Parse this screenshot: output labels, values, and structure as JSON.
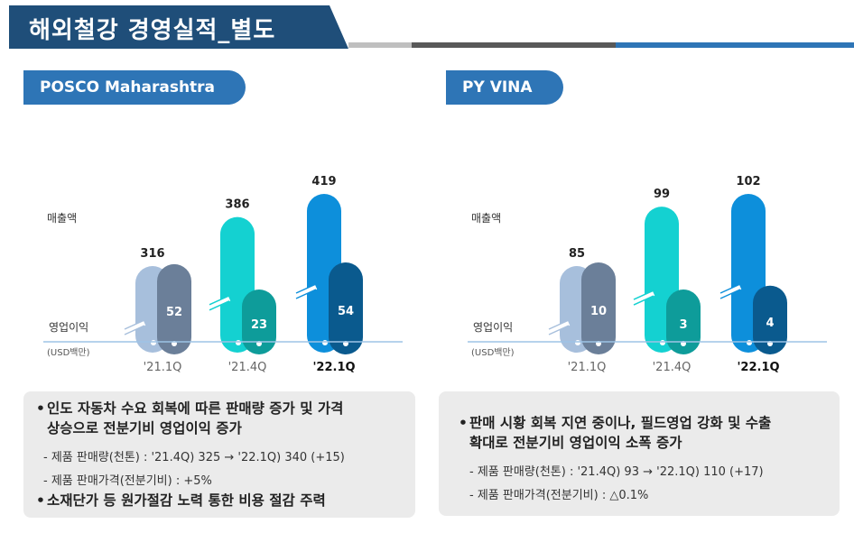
{
  "page_title": "해외철강 경영실적_별도",
  "charts": [
    {
      "name": "POSCO Maharashtra",
      "label_sales": "매출액",
      "label_op": "영업이익",
      "unit": "(USD백만)",
      "periods": [
        {
          "label": "'21.1Q",
          "sales": 316,
          "op": 52,
          "bold": false
        },
        {
          "label": "'21.4Q",
          "sales": 386,
          "op": 23,
          "bold": false
        },
        {
          "label": "'22.1Q",
          "sales": 419,
          "op": 54,
          "bold": true
        }
      ]
    },
    {
      "name": "PY VINA",
      "label_sales": "매출액",
      "label_op": "영업이익",
      "unit": "(USD백만)",
      "periods": [
        {
          "label": "'21.1Q",
          "sales": 85,
          "op": 10,
          "bold": false
        },
        {
          "label": "'21.4Q",
          "sales": 99,
          "op": 3,
          "bold": false
        },
        {
          "label": "'22.1Q",
          "sales": 102,
          "op": 4,
          "bold": true
        }
      ]
    }
  ],
  "notes": [
    {
      "bullets": [
        "인도 자동차 수요 회복에 따른 판매량 증가 및 가격",
        "상승으로 전분기비 영업이익 증가"
      ],
      "subs": [
        "- 제품 판매량(천톤) : '21.4Q) 325 → '22.1Q) 340 (+15)",
        "- 제품 판매가격(전분기비) : +5%"
      ],
      "bullet2": "소재단가 등 원가절감 노력 통한 비용 절감 주력"
    },
    {
      "bullets": [
        "판매 시황 회복 지연 중이나, 필드영업 강화 및 수출",
        "확대로 전분기비 영업이익 소폭 증가"
      ],
      "subs": [
        "- 제품 판매량(천톤) : '21.4Q) 93 → '22.1Q) 110 (+17)",
        "- 제품 판매가격(전분기비) : △0.1%"
      ]
    }
  ],
  "colors": {
    "title_bg": "#1f4e79",
    "tab_bg": "#2e75b6",
    "sales": [
      "#a7bfdc",
      "#14d1d1",
      "#0d8fdb"
    ],
    "op": [
      "#6b7f99",
      "#0e9c9a",
      "#0a5a8e"
    ],
    "axis": "#9dc3e6",
    "box": "#ebebeb"
  }
}
